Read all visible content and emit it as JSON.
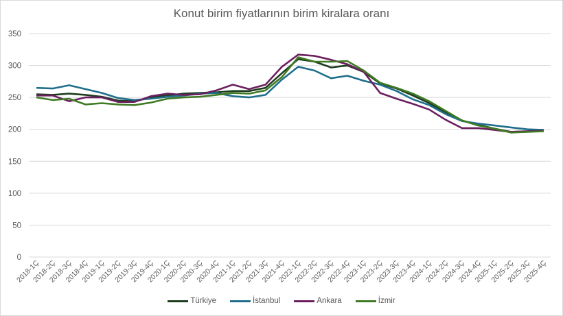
{
  "chart_data": {
    "type": "line",
    "title": "Konut birim fiyatlarının birim kiralara oranı",
    "xlabel": "",
    "ylabel": "",
    "ylim": [
      0,
      350
    ],
    "yticks": [
      0,
      50,
      100,
      150,
      200,
      250,
      300,
      350
    ],
    "grid": "horizontal",
    "legend_position": "bottom",
    "categories": [
      "2018-1Ç",
      "2018-2Ç",
      "2018-3Ç",
      "2018-4Ç",
      "2019-1Ç",
      "2019-2Ç",
      "2019-3Ç",
      "2019-4Ç",
      "2020-1Ç",
      "2020-2Ç",
      "2020-3Ç",
      "2020-4Ç",
      "2021-1Ç",
      "2021-2Ç",
      "2021-3Ç",
      "2021-4Ç",
      "2022-1Ç",
      "2022-2Ç",
      "2022-3Ç",
      "2022-4Ç",
      "2023-1Ç",
      "2023-2Ç",
      "2023-3Ç",
      "2023-4Ç",
      "2024-1Ç",
      "2024-2Ç",
      "2024-3Ç",
      "2024-4Ç",
      "2025-1Ç",
      "2025-2Ç",
      "2025-3Ç",
      "2025-4Ç"
    ],
    "series": [
      {
        "name": "Türkiye",
        "color": "#1e3d1e",
        "values": [
          255,
          254,
          256,
          254,
          251,
          245,
          244,
          250,
          253,
          256,
          257,
          258,
          260,
          260,
          265,
          288,
          310,
          306,
          297,
          300,
          290,
          272,
          264,
          253,
          241,
          227,
          214,
          207,
          201,
          196,
          197,
          199
        ]
      },
      {
        "name": "İstanbul",
        "color": "#1f6e8c",
        "values": [
          265,
          264,
          269,
          263,
          257,
          249,
          246,
          248,
          251,
          253,
          256,
          257,
          252,
          250,
          254,
          278,
          298,
          292,
          280,
          284,
          276,
          270,
          260,
          247,
          238,
          224,
          213,
          209,
          206,
          203,
          200,
          199
        ]
      },
      {
        "name": "Ankara",
        "color": "#6b1f5e",
        "values": [
          253,
          253,
          244,
          250,
          250,
          243,
          243,
          252,
          256,
          254,
          255,
          261,
          270,
          263,
          270,
          298,
          317,
          315,
          309,
          302,
          290,
          257,
          248,
          240,
          231,
          215,
          202,
          202,
          199,
          196,
          197,
          198
        ]
      },
      {
        "name": "İzmir",
        "color": "#3f7a24",
        "values": [
          250,
          246,
          248,
          239,
          241,
          239,
          238,
          242,
          248,
          250,
          251,
          254,
          257,
          256,
          261,
          282,
          313,
          306,
          306,
          307,
          292,
          273,
          265,
          256,
          244,
          229,
          214,
          206,
          201,
          195,
          196,
          197
        ]
      }
    ]
  },
  "legend": {
    "items": [
      {
        "label": "Türkiye",
        "color": "#1e3d1e"
      },
      {
        "label": "İstanbul",
        "color": "#1f6e8c"
      },
      {
        "label": "Ankara",
        "color": "#6b1f5e"
      },
      {
        "label": "İzmir",
        "color": "#3f7a24"
      }
    ]
  }
}
